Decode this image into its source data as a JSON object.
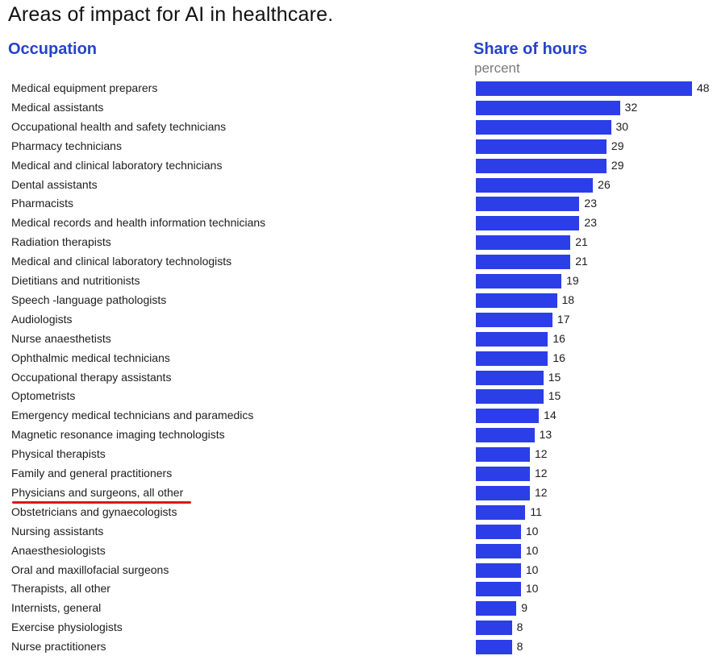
{
  "title": "Areas of impact for AI in healthcare.",
  "headers": {
    "occupation": "Occupation",
    "share": "Share of hours",
    "unit": "percent"
  },
  "colors": {
    "bar": "#2b3ee8",
    "header": "#2443c9",
    "highlight_underline": "#e01414"
  },
  "highlighted_category": "Physicians and surgeons, all other",
  "chart_data": {
    "type": "bar",
    "orientation": "horizontal",
    "title": "Areas of impact for AI in healthcare.",
    "xlabel": "",
    "ylabel": "",
    "categories": [
      "Medical equipment preparers",
      "Medical assistants",
      "Occupational health and safety technicians",
      "Pharmacy technicians",
      "Medical and clinical laboratory technicians",
      "Dental assistants",
      "Pharmacists",
      "Medical records and health information technicians",
      "Radiation therapists",
      "Medical and clinical laboratory technologists",
      "Dietitians and nutritionists",
      "Speech -language pathologists",
      "Audiologists",
      "Nurse anaesthetists",
      "Ophthalmic medical technicians",
      "Occupational therapy assistants",
      "Optometrists",
      "Emergency medical technicians and paramedics",
      "Magnetic resonance imaging technologists",
      "Physical therapists",
      "Family and general practitioners",
      "Physicians and surgeons, all other",
      "Obstetricians and gynaecologists",
      "Nursing assistants",
      "Anaesthesiologists",
      "Oral and maxillofacial surgeons",
      "Therapists, all other",
      "Internists, general",
      "Exercise physiologists",
      "Nurse practitioners"
    ],
    "values": [
      48,
      32,
      30,
      29,
      29,
      26,
      23,
      23,
      21,
      21,
      19,
      18,
      17,
      16,
      16,
      15,
      15,
      14,
      13,
      12,
      12,
      12,
      11,
      10,
      10,
      10,
      10,
      9,
      8,
      8
    ],
    "xlim": [
      0,
      48
    ]
  }
}
